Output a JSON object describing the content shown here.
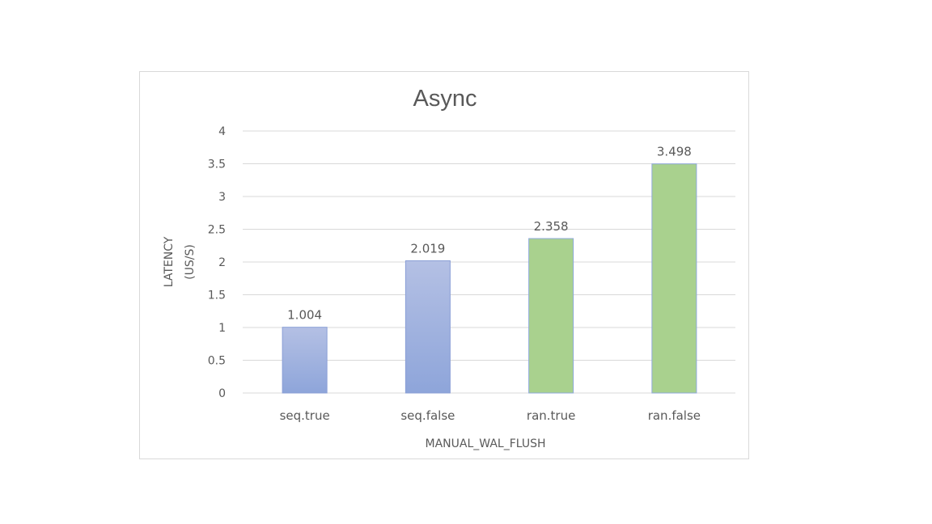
{
  "chart_data": {
    "type": "bar",
    "title": "Async",
    "xlabel": "MANUAL_WAL_FLUSH",
    "ylabel": [
      "LATENCY",
      "(US/S)"
    ],
    "categories": [
      "seq.true",
      "seq.false",
      "ran.true",
      "ran.false"
    ],
    "values": [
      1.004,
      2.019,
      2.358,
      3.498
    ],
    "data_labels": [
      "1.004",
      "2.019",
      "2.358",
      "3.498"
    ],
    "bar_colors": [
      "blue",
      "blue",
      "green",
      "green"
    ],
    "ylim": [
      0,
      4
    ],
    "yticks": [
      "0",
      "0.5",
      "1",
      "1.5",
      "2",
      "2.5",
      "3",
      "3.5",
      "4"
    ],
    "grid": true,
    "legend": "none"
  },
  "colors": {
    "blue_top": "#b4c0e4",
    "blue_bottom": "#8ea5da",
    "blue_edge": "#8a9fd6",
    "green_fill": "#a9d18e",
    "green_edge": "#8ea9db",
    "gridline": "#d9d9d9",
    "text": "#595959"
  }
}
